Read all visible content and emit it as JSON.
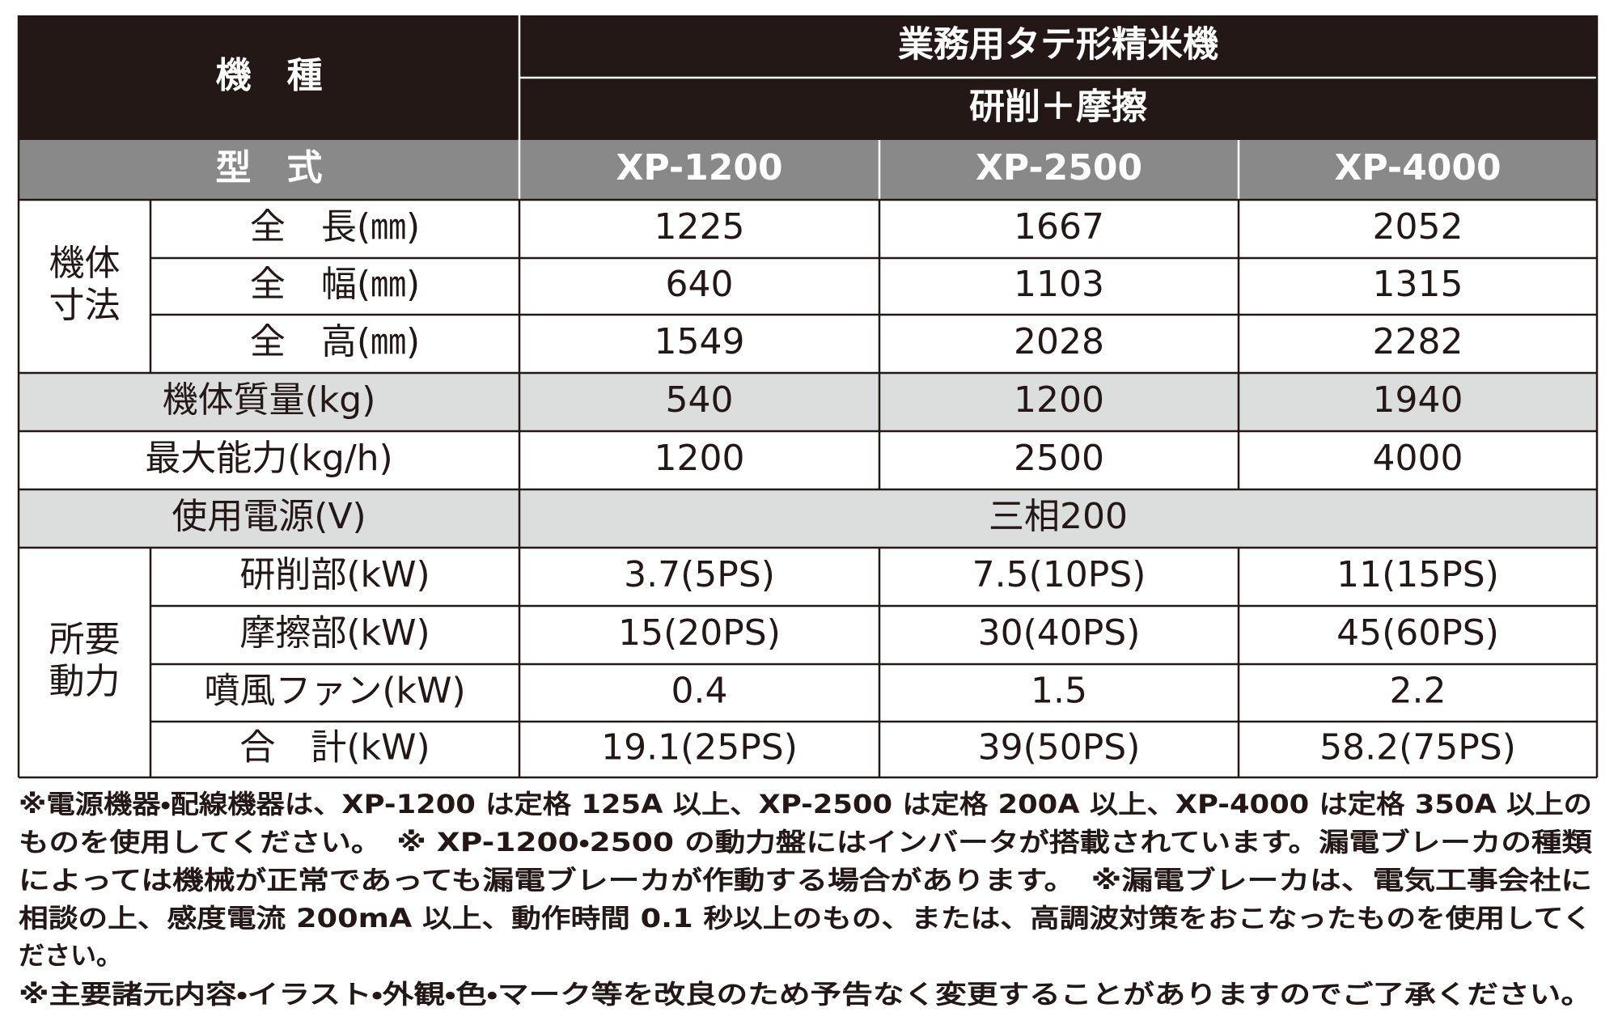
{
  "header": {
    "kind_label": "機　種",
    "product": "業務用タテ形精米機",
    "method": "研削＋摩擦",
    "model_label": "型　式",
    "models": [
      "XP-1200",
      "XP-2500",
      "XP-4000"
    ]
  },
  "dimensions": {
    "group": [
      "機体",
      "寸法"
    ],
    "rows": [
      {
        "label": "全　長(㎜)",
        "values": [
          1225,
          1667,
          2052
        ]
      },
      {
        "label": "全　幅(㎜)",
        "values": [
          640,
          1103,
          1315
        ]
      },
      {
        "label": "全　高(㎜)",
        "values": [
          1549,
          2028,
          2282
        ]
      }
    ]
  },
  "mass": {
    "label": "機体質量(kg)",
    "values": [
      540,
      1200,
      1940
    ]
  },
  "capacity": {
    "label": "最大能力(kg/h)",
    "values": [
      1200,
      2500,
      4000
    ]
  },
  "power_supply": {
    "label": "使用電源(V)",
    "value": "三相200"
  },
  "power": {
    "group": [
      "所要",
      "動力"
    ],
    "rows": [
      {
        "label": "研削部(kW)",
        "values": [
          "3.7(5PS)",
          "7.5(10PS)",
          "11(15PS)"
        ]
      },
      {
        "label": "摩擦部(kW)",
        "values": [
          "15(20PS)",
          "30(40PS)",
          "45(60PS)"
        ]
      },
      {
        "label": "噴風ファン(kW)",
        "values": [
          0.4,
          1.5,
          2.2
        ]
      },
      {
        "label": "合　計(kW)",
        "values": [
          "19.1(25PS)",
          "39(50PS)",
          "58.2(75PS)"
        ]
      }
    ]
  },
  "notes": [
    "※電源機器・配線機器は、XP-1200 は定格 125A 以上、XP-2500 は定格 200A 以上、XP-4000 は定格 350A 以上の",
    "ものを使用してください。　※ XP-1200・2500 の動力盤にはインバータが搭載されています。漏電ブレーカの種類",
    "によっては機械が正常であっても漏電ブレーカが作動する場合があります。　※漏電ブレーカは、電気工事会社に",
    "相談の上、感度電流 200mA 以上、動作時間 0.1 秒以上のもの、または、高調波対策をおこなったものを使用してく",
    "ださい。",
    "※主要諸元内容・イラスト・外観・色・マーク等を改良のため予告なく変更することがありますのでご了承ください。"
  ]
}
